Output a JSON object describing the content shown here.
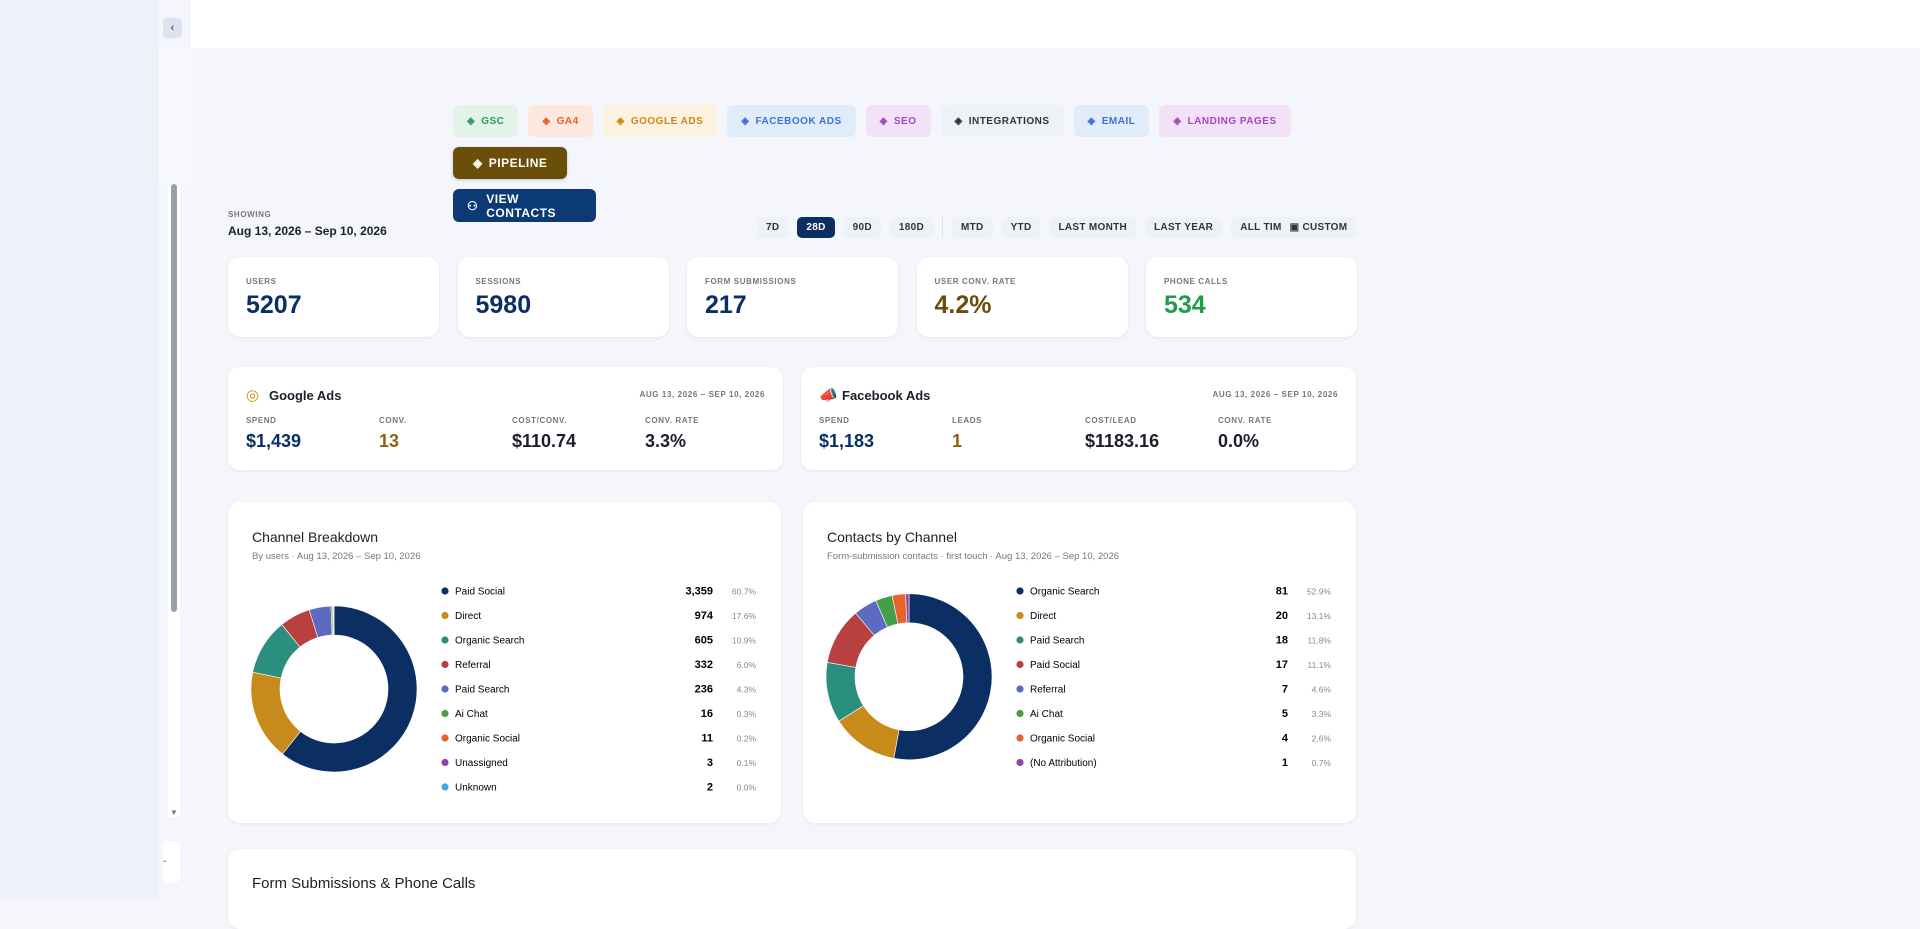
{
  "nav": {
    "buttons": [
      "GSC",
      "GA4",
      "GOOGLE ADS",
      "FACEBOOK ADS",
      "SEO",
      "INTEGRATIONS",
      "EMAIL",
      "LANDING PAGES",
      "PIPELINE"
    ],
    "contacts_button": "VIEW CONTACTS"
  },
  "range": {
    "label": "SHOWING",
    "dates": "Aug 13, 2026 – Sep 10, 2026",
    "options": [
      "7D",
      "28D",
      "90D",
      "180D",
      "MTD",
      "YTD",
      "LAST MONTH",
      "LAST YEAR",
      "ALL TIME"
    ],
    "selected": "28D",
    "custom": "CUSTOM"
  },
  "kpis": [
    {
      "label": "USERS",
      "value": "5207",
      "color": "#0b2f63"
    },
    {
      "label": "SESSIONS",
      "value": "5980",
      "color": "#0b2f63"
    },
    {
      "label": "FORM SUBMISSIONS",
      "value": "217",
      "color": "#0b2f63"
    },
    {
      "label": "USER CONV. RATE",
      "value": "4.2%",
      "color": "#6b4e0a"
    },
    {
      "label": "PHONE CALLS",
      "value": "534",
      "color": "#1f9d4c"
    }
  ],
  "ads": [
    {
      "title": "Google Ads",
      "dates": "AUG 13, 2026 – SEP 10, 2026",
      "metrics": [
        {
          "label": "SPEND",
          "value": "$1,439",
          "color": "#0b2f63"
        },
        {
          "label": "CONV.",
          "value": "13",
          "color": "#8a6510"
        },
        {
          "label": "COST/CONV.",
          "value": "$110.74",
          "color": "#1b1f2a"
        },
        {
          "label": "CONV. RATE",
          "value": "3.3%",
          "color": "#1b1f2a"
        }
      ]
    },
    {
      "title": "Facebook Ads",
      "dates": "AUG 13, 2026 – SEP 10, 2026",
      "metrics": [
        {
          "label": "SPEND",
          "value": "$1,183",
          "color": "#0b2f63"
        },
        {
          "label": "LEADS",
          "value": "1",
          "color": "#8a6510"
        },
        {
          "label": "COST/LEAD",
          "value": "$1183.16",
          "color": "#1b1f2a"
        },
        {
          "label": "CONV. RATE",
          "value": "0.0%",
          "color": "#1b1f2a"
        }
      ]
    }
  ],
  "charts": [
    {
      "type": "pie",
      "title": "Channel Breakdown",
      "subtitle": "By users · Aug 13, 2026 – Sep 10, 2026",
      "items": [
        {
          "name": "Paid Social",
          "value": 3359,
          "value_label": "3,359",
          "share": "60.7%",
          "color": "#0b2f63"
        },
        {
          "name": "Direct",
          "value": 974,
          "share": "17.6%",
          "color": "#c98a1c"
        },
        {
          "name": "Organic Search",
          "value": 605,
          "share": "10.9%",
          "color": "#2a8f7f"
        },
        {
          "name": "Referral",
          "value": 332,
          "share": "6.0%",
          "color": "#b84040"
        },
        {
          "name": "Paid Search",
          "value": 236,
          "share": "4.3%",
          "color": "#5c6bc0"
        },
        {
          "name": "Ai Chat",
          "value": 16,
          "share": "0.3%",
          "color": "#43a047"
        },
        {
          "name": "Organic Social",
          "value": 11,
          "share": "0.2%",
          "color": "#e8632b"
        },
        {
          "name": "Unassigned",
          "value": 3,
          "share": "0.1%",
          "color": "#8e44ad"
        },
        {
          "name": "Unknown",
          "value": 2,
          "share": "0.0%",
          "color": "#4aa3df"
        }
      ]
    },
    {
      "type": "pie",
      "title": "Contacts by Channel",
      "subtitle": "Form-submission contacts · first touch · Aug 13, 2026 – Sep 10, 2026",
      "items": [
        {
          "name": "Organic Search",
          "value": 81,
          "share": "52.9%",
          "color": "#0b2f63"
        },
        {
          "name": "Direct",
          "value": 20,
          "share": "13.1%",
          "color": "#c98a1c"
        },
        {
          "name": "Paid Search",
          "value": 18,
          "share": "11.8%",
          "color": "#2a8f7f"
        },
        {
          "name": "Paid Social",
          "value": 17,
          "share": "11.1%",
          "color": "#b84040"
        },
        {
          "name": "Referral",
          "value": 7,
          "share": "4.6%",
          "color": "#5c6bc0"
        },
        {
          "name": "Ai Chat",
          "value": 5,
          "share": "3.3%",
          "color": "#43a047"
        },
        {
          "name": "Organic Social",
          "value": 4,
          "share": "2.6%",
          "color": "#e8632b"
        },
        {
          "name": "(No Attribution)",
          "value": 1,
          "share": "0.7%",
          "color": "#8e44ad"
        }
      ]
    }
  ],
  "bottom": {
    "title": "Form Submissions & Phone Calls"
  }
}
